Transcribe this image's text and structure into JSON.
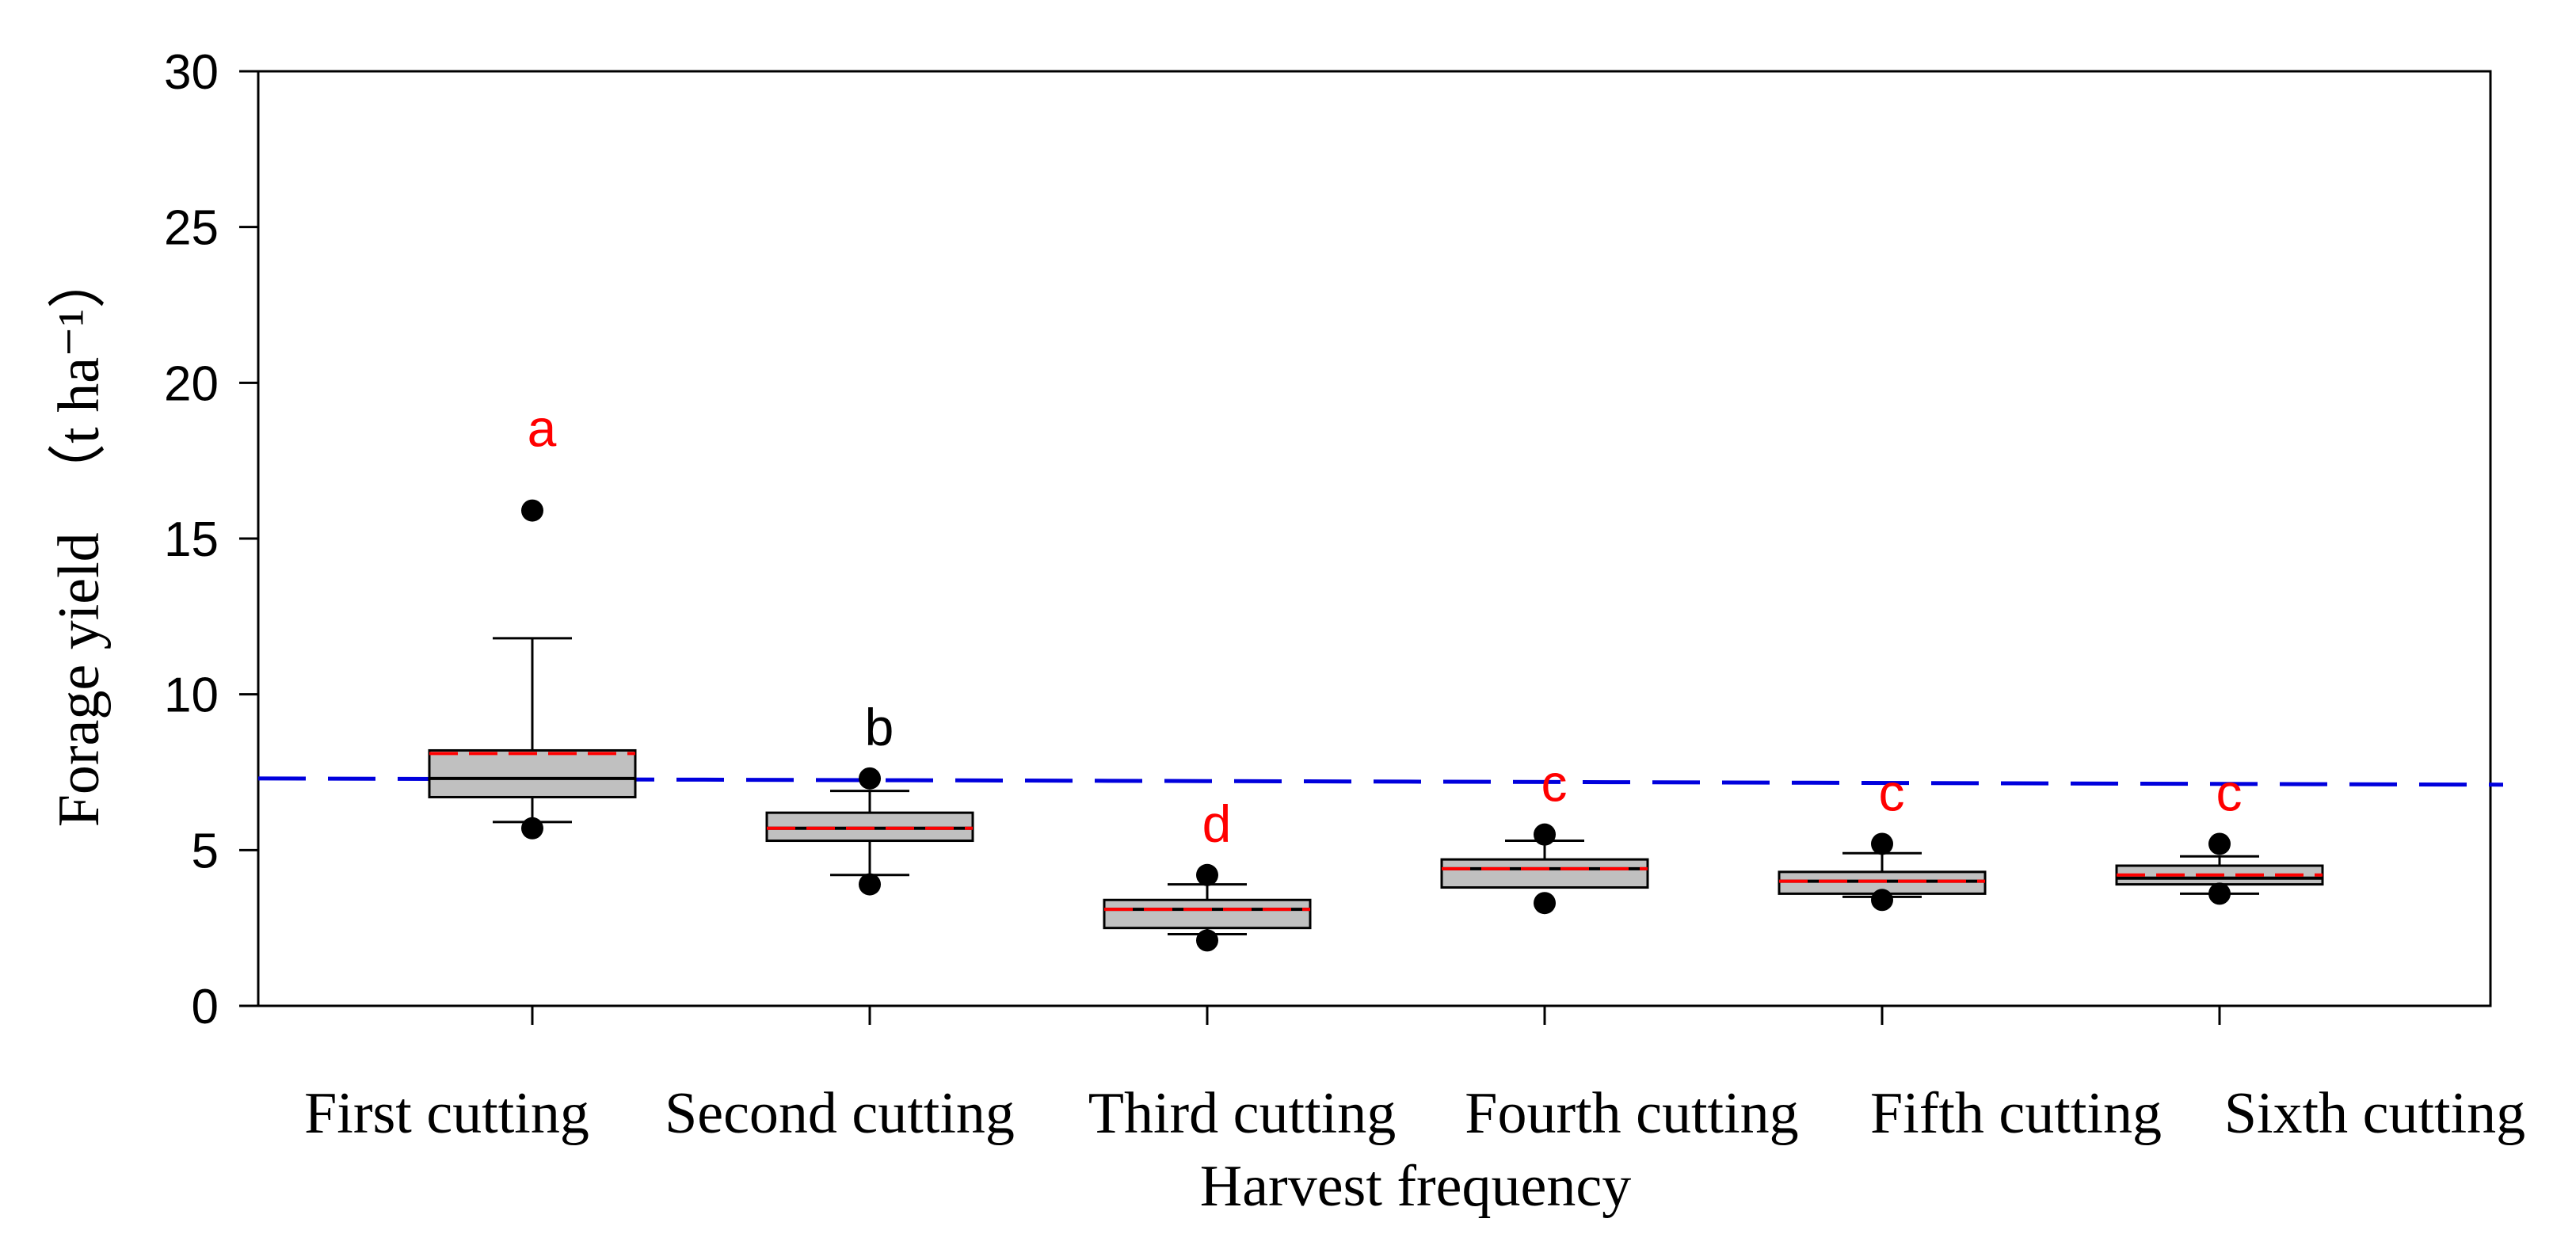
{
  "chart_data": {
    "type": "box",
    "title": "",
    "xlabel": "Harvest frequency",
    "ylabel": "Forage yield",
    "ylabel_unit": "（t ha⁻¹）",
    "ylim": [
      0,
      30
    ],
    "yticks": [
      0,
      5,
      10,
      15,
      20,
      25,
      30
    ],
    "grid": false,
    "categories": [
      "First cutting",
      "Second cutting",
      "Third cutting",
      "Fourth cutting",
      "Fifth cutting",
      "Sixth cutting"
    ],
    "boxes": [
      {
        "category": "First cutting",
        "whisker_low": 5.9,
        "q1": 6.7,
        "median": 7.3,
        "mean": 8.1,
        "q3": 8.2,
        "whisker_high": 11.8,
        "outliers": [
          15.9,
          5.7
        ],
        "letter": "a",
        "letter_color": "#ff0000"
      },
      {
        "category": "Second cutting",
        "whisker_low": 4.2,
        "q1": 5.3,
        "median": 5.7,
        "mean": 5.7,
        "q3": 6.2,
        "whisker_high": 6.9,
        "outliers": [
          7.3,
          3.9
        ],
        "letter": "b",
        "letter_color": "#000000"
      },
      {
        "category": "Third cutting",
        "whisker_low": 2.3,
        "q1": 2.5,
        "median": 3.1,
        "mean": 3.1,
        "q3": 3.4,
        "whisker_high": 3.9,
        "outliers": [
          4.2,
          2.1
        ],
        "letter": "d",
        "letter_color": "#ff0000"
      },
      {
        "category": "Fourth cutting",
        "whisker_low": 3.8,
        "q1": 3.8,
        "median": 4.4,
        "mean": 4.4,
        "q3": 4.7,
        "whisker_high": 5.3,
        "outliers": [
          5.5,
          3.3
        ],
        "letter": "c",
        "letter_color": "#ff0000"
      },
      {
        "category": "Fifth cutting",
        "whisker_low": 3.5,
        "q1": 3.6,
        "median": 4.0,
        "mean": 4.0,
        "q3": 4.3,
        "whisker_high": 4.9,
        "outliers": [
          5.2,
          3.4
        ],
        "letter": "c",
        "letter_color": "#ff0000"
      },
      {
        "category": "Sixth cutting",
        "whisker_low": 3.6,
        "q1": 3.9,
        "median": 4.1,
        "mean": 4.2,
        "q3": 4.5,
        "whisker_high": 4.8,
        "outliers": [
          5.2,
          3.6
        ],
        "letter": "c",
        "letter_color": "#ff0000"
      }
    ],
    "reference_line": {
      "y_start": 7.3,
      "y_end": 7.1,
      "style": "dashed",
      "color": "#0000dd"
    },
    "colors": {
      "box_fill": "#c0c0c0",
      "median_line": "#000000",
      "mean_line": "#ff0000",
      "outlier": "#000000"
    }
  }
}
